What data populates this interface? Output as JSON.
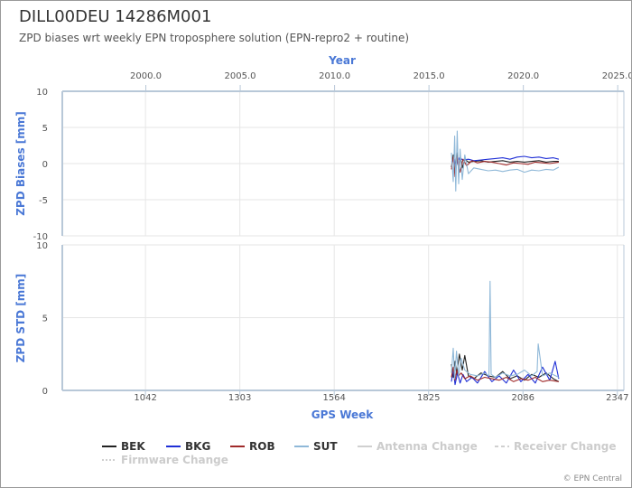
{
  "title": "DILL00DEU 14286M001",
  "subtitle": "ZPD biases wrt weekly EPN troposphere solution (EPN-repro2 + routine)",
  "credit": "© EPN Central",
  "colors": {
    "axis_title": "#4a78d6",
    "axis": "#b8c8d8",
    "grid": "#e6e6e6",
    "tick_text": "#555555"
  },
  "chart_data": [
    {
      "type": "line",
      "panel": "top",
      "ylabel": "ZPD Biases [mm]",
      "ylim": [
        -10,
        10
      ],
      "y_ticks": [
        "10",
        "5",
        "0",
        "-5",
        "-10"
      ],
      "x2label": "Year",
      "x2_ticks": [
        "2000.0",
        "2005.0",
        "2010.0",
        "2015.0",
        "2020.0",
        "2025.0"
      ],
      "xlim_weeks": [
        812,
        2365
      ],
      "grid": true,
      "series": [
        {
          "name": "BEK",
          "color": "#222222",
          "x": [
            1888,
            1893,
            1898,
            1903,
            1908,
            1913,
            1918,
            1925,
            1935,
            1950,
            1970,
            1990,
            2010,
            2030,
            2050,
            2070,
            2090,
            2110,
            2130,
            2150,
            2170,
            2185
          ],
          "y": [
            -0.5,
            1.2,
            -1.4,
            1.5,
            -0.8,
            0.9,
            -0.6,
            0.6,
            0.2,
            0.3,
            0.4,
            0.2,
            0.3,
            0.4,
            0.2,
            0.3,
            0.2,
            0.3,
            0.4,
            0.2,
            0.3,
            0.3
          ]
        },
        {
          "name": "BKG",
          "color": "#1f2fd6",
          "x": [
            1888,
            1895,
            1900,
            1910,
            1920,
            1935,
            1950,
            1970,
            1990,
            2010,
            2030,
            2050,
            2070,
            2090,
            2110,
            2130,
            2150,
            2170,
            2185
          ],
          "y": [
            0.2,
            0.6,
            -0.3,
            0.8,
            0.5,
            0.6,
            0.4,
            0.5,
            0.6,
            0.7,
            0.8,
            0.6,
            0.9,
            1.0,
            0.8,
            0.9,
            0.7,
            0.8,
            0.6
          ]
        },
        {
          "name": "ROB",
          "color": "#a02a2a",
          "x": [
            1888,
            1893,
            1898,
            1905,
            1912,
            1920,
            1930,
            1945,
            1960,
            1980,
            2000,
            2020,
            2040,
            2060,
            2080,
            2100,
            2120,
            2140,
            2160,
            2185
          ],
          "y": [
            -0.8,
            0.9,
            -1.8,
            1.0,
            -1.2,
            0.6,
            -0.3,
            0.4,
            0.1,
            0.3,
            0.2,
            0.0,
            -0.2,
            0.1,
            0.0,
            -0.1,
            0.2,
            0.1,
            0.0,
            0.2
          ]
        },
        {
          "name": "SUT",
          "color": "#8fb8d8",
          "x": [
            1888,
            1893,
            1897,
            1900,
            1904,
            1908,
            1912,
            1918,
            1925,
            1935,
            1950,
            1970,
            1990,
            2010,
            2030,
            2050,
            2070,
            2090,
            2110,
            2130,
            2150,
            2170,
            2185
          ],
          "y": [
            1.5,
            -2.5,
            3.8,
            -3.8,
            4.5,
            -2.8,
            2.0,
            -2.2,
            1.2,
            -1.4,
            -0.6,
            -0.8,
            -1.0,
            -0.9,
            -1.1,
            -0.9,
            -0.8,
            -1.2,
            -0.9,
            -1.0,
            -0.8,
            -0.9,
            -0.5
          ]
        }
      ]
    },
    {
      "type": "line",
      "panel": "bottom",
      "ylabel": "ZPD STD [mm]",
      "xlabel": "GPS Week",
      "ylim": [
        0,
        10
      ],
      "y_ticks": [
        "10",
        "5",
        "0"
      ],
      "x_ticks": [
        "1042",
        "1303",
        "1564",
        "1825",
        "2086",
        "2347"
      ],
      "x_tick_values": [
        1042,
        1303,
        1564,
        1825,
        2086,
        2347
      ],
      "xlim_weeks": [
        812,
        2365
      ],
      "grid": true,
      "series": [
        {
          "name": "BEK",
          "color": "#222222",
          "x": [
            1888,
            1893,
            1898,
            1903,
            1910,
            1918,
            1925,
            1935,
            1950,
            1970,
            1990,
            2010,
            2030,
            2050,
            2070,
            2090,
            2110,
            2130,
            2150,
            2170,
            2185
          ],
          "y": [
            1.8,
            0.9,
            2.0,
            1.1,
            2.5,
            1.4,
            2.4,
            1.0,
            0.8,
            1.2,
            1.0,
            0.9,
            1.3,
            0.8,
            1.0,
            0.7,
            1.1,
            0.9,
            1.2,
            0.8,
            0.6
          ]
        },
        {
          "name": "BKG",
          "color": "#1f2fd6",
          "x": [
            1888,
            1893,
            1898,
            1905,
            1912,
            1920,
            1930,
            1945,
            1960,
            1980,
            2000,
            2020,
            2040,
            2060,
            2080,
            2100,
            2120,
            2140,
            2160,
            2175,
            2185
          ],
          "y": [
            0.6,
            1.5,
            0.4,
            1.2,
            0.5,
            1.1,
            0.6,
            0.9,
            0.5,
            1.3,
            0.6,
            1.0,
            0.5,
            1.4,
            0.6,
            1.1,
            0.5,
            1.6,
            0.7,
            2.0,
            0.8
          ]
        },
        {
          "name": "ROB",
          "color": "#a02a2a",
          "x": [
            1888,
            1893,
            1898,
            1903,
            1908,
            1915,
            1925,
            1940,
            1960,
            1980,
            2000,
            2020,
            2040,
            2060,
            2080,
            2100,
            2120,
            2140,
            2160,
            2185
          ],
          "y": [
            0.9,
            1.6,
            0.7,
            1.4,
            1.0,
            1.2,
            0.8,
            1.0,
            0.7,
            0.9,
            0.8,
            0.7,
            0.9,
            0.6,
            0.8,
            0.7,
            0.9,
            0.6,
            0.7,
            0.6
          ]
        },
        {
          "name": "SUT",
          "color": "#8fb8d8",
          "x": [
            1888,
            1893,
            1897,
            1902,
            1908,
            1915,
            1925,
            1940,
            1960,
            1980,
            1992,
            1995,
            1998,
            2010,
            2030,
            2050,
            2070,
            2090,
            2110,
            2125,
            2128,
            2140,
            2160,
            2185
          ],
          "y": [
            1.2,
            2.9,
            0.8,
            2.7,
            1.0,
            2.2,
            1.4,
            1.1,
            1.0,
            1.2,
            1.0,
            7.5,
            1.1,
            0.9,
            1.2,
            1.0,
            1.1,
            1.4,
            1.0,
            1.3,
            3.2,
            1.0,
            1.2,
            0.9
          ]
        }
      ]
    }
  ],
  "legend": {
    "items": [
      {
        "label": "BEK",
        "color": "#222222",
        "style": "solid"
      },
      {
        "label": "BKG",
        "color": "#1f2fd6",
        "style": "solid"
      },
      {
        "label": "ROB",
        "color": "#a02a2a",
        "style": "solid"
      },
      {
        "label": "SUT",
        "color": "#8fb8d8",
        "style": "solid"
      },
      {
        "label": "Antenna Change",
        "color": "#d0d0d0",
        "style": "solid"
      },
      {
        "label": "Receiver Change",
        "color": "#d0d0d0",
        "style": "dashed"
      },
      {
        "label": "Firmware Change",
        "color": "#d0d0d0",
        "style": "dotted"
      }
    ]
  }
}
